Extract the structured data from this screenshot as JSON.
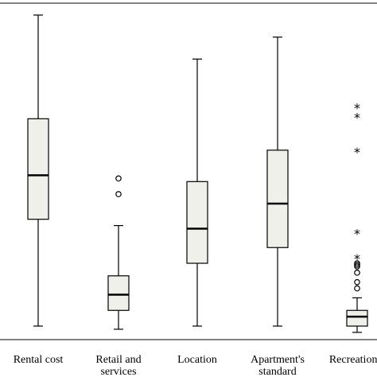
{
  "chart_data": {
    "type": "boxplot",
    "title": "",
    "xlabel": "",
    "ylabel": "",
    "ylim": [
      0,
      100
    ],
    "grid": false,
    "box_fill": "#f0f0ea",
    "categories": [
      [
        "Rental cost"
      ],
      [
        "Retail and",
        "services"
      ],
      [
        "Location"
      ],
      [
        "Apartment's",
        "standard"
      ],
      [
        "Recreation a"
      ]
    ],
    "boxes": [
      {
        "min": 0,
        "q1": 34,
        "median": 48,
        "q3": 66,
        "max": 99,
        "outliers": [],
        "extremes": []
      },
      {
        "min": -1,
        "q1": 5,
        "median": 10,
        "q3": 16,
        "max": 32,
        "outliers": [
          42,
          47
        ],
        "extremes": []
      },
      {
        "min": 0,
        "q1": 20,
        "median": 31,
        "q3": 46,
        "max": 85,
        "outliers": [],
        "extremes": []
      },
      {
        "min": 0,
        "q1": 25,
        "median": 39,
        "q3": 56,
        "max": 92,
        "outliers": [],
        "extremes": []
      },
      {
        "min": -2,
        "q1": 0,
        "median": 3,
        "q3": 5,
        "max": 9,
        "outliers": [
          12,
          14,
          17,
          19,
          19.5,
          20
        ],
        "extremes": [
          22,
          30,
          56,
          67,
          70
        ]
      }
    ]
  }
}
